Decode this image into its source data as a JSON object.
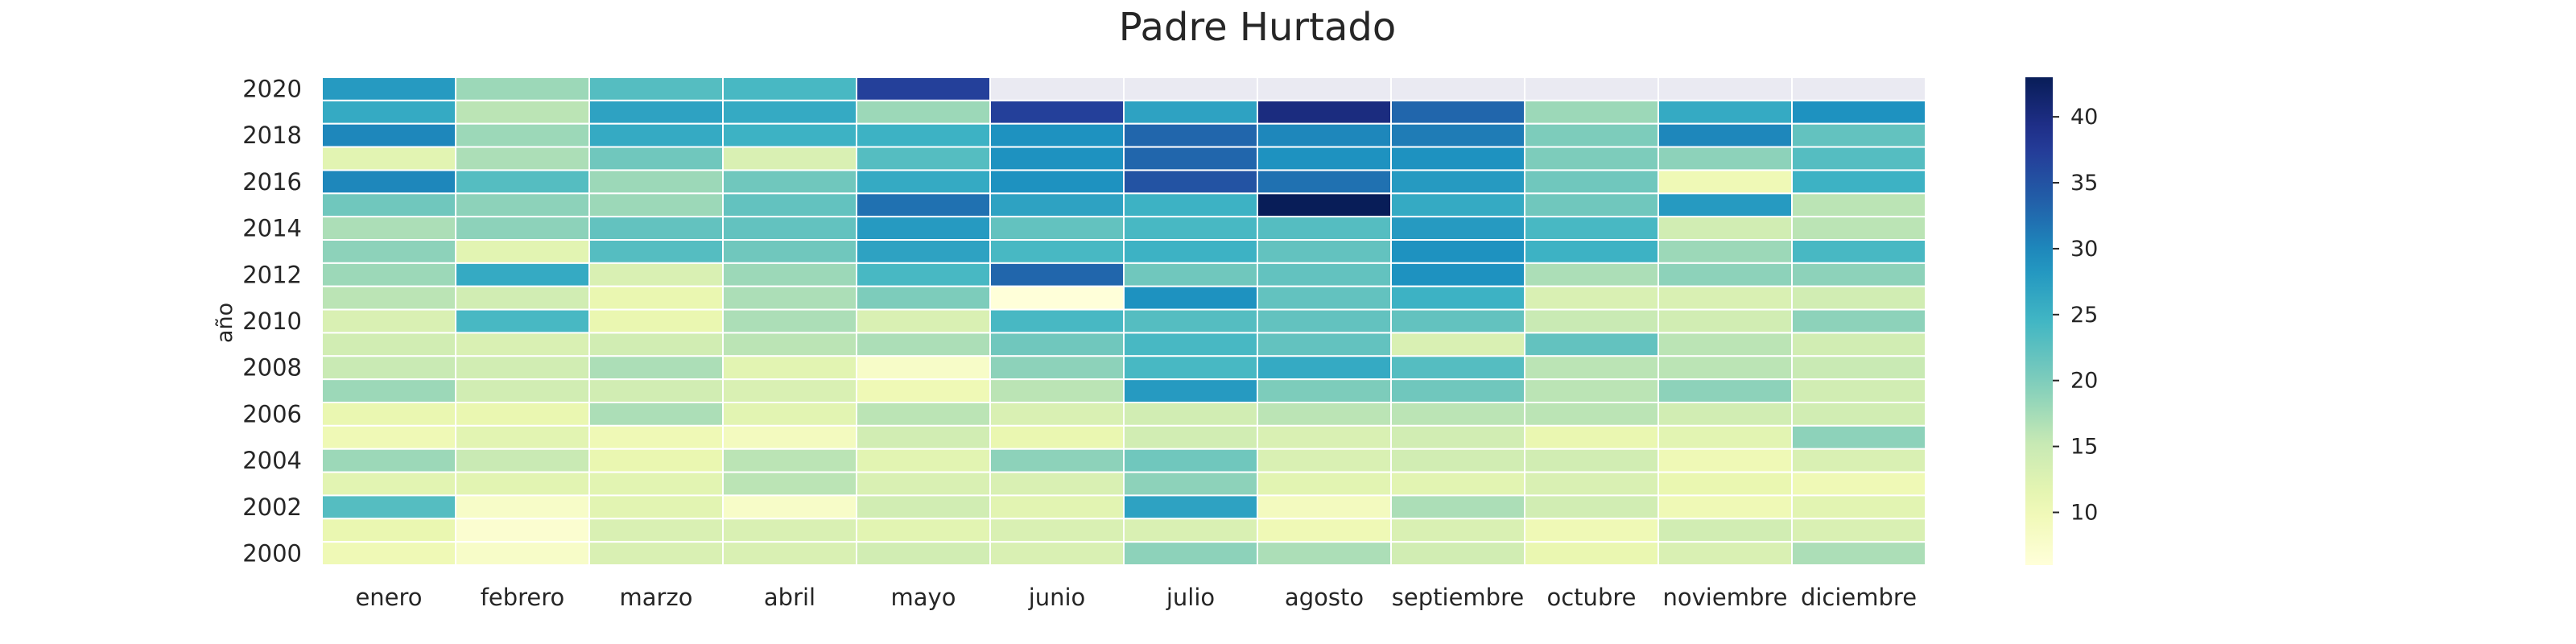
{
  "chart_data": {
    "type": "heatmap",
    "title": "Padre Hurtado",
    "xlabel": "",
    "ylabel": "año",
    "months": [
      "enero",
      "febrero",
      "marzo",
      "abril",
      "mayo",
      "junio",
      "julio",
      "agosto",
      "septiembre",
      "octubre",
      "noviembre",
      "diciembre"
    ],
    "years": [
      2020,
      2019,
      2018,
      2017,
      2016,
      2015,
      2014,
      2013,
      2012,
      2011,
      2010,
      2009,
      2008,
      2007,
      2006,
      2005,
      2004,
      2003,
      2002,
      2001,
      2000
    ],
    "year_tick_labels": [
      "2020",
      "2018",
      "2016",
      "2014",
      "2012",
      "2010",
      "2008",
      "2006",
      "2004",
      "2002",
      "2000"
    ],
    "values": [
      [
        28,
        18,
        23,
        24,
        37,
        null,
        null,
        null,
        null,
        null,
        null,
        null
      ],
      [
        26,
        16,
        27,
        26,
        18,
        37,
        27,
        40,
        33,
        18,
        26,
        29
      ],
      [
        30,
        18,
        26,
        25,
        25,
        29,
        33,
        30,
        31,
        20,
        30,
        22
      ],
      [
        12,
        17,
        21,
        13,
        23,
        29,
        33,
        29,
        29,
        20,
        19,
        23
      ],
      [
        30,
        23,
        18,
        21,
        26,
        29,
        35,
        32,
        28,
        21,
        10,
        25
      ],
      [
        21,
        19,
        18,
        22,
        32,
        27,
        25,
        43,
        26,
        21,
        28,
        16
      ],
      [
        17,
        19,
        22,
        22,
        28,
        22,
        24,
        23,
        28,
        24,
        14,
        16
      ],
      [
        19,
        12,
        23,
        21,
        27,
        24,
        25,
        22,
        29,
        25,
        18,
        24
      ],
      [
        18,
        26,
        13,
        18,
        24,
        33,
        21,
        22,
        29,
        17,
        19,
        19
      ],
      [
        16,
        14,
        11,
        17,
        20,
        6,
        29,
        22,
        25,
        13,
        13,
        14
      ],
      [
        13,
        24,
        11,
        17,
        13,
        24,
        23,
        22,
        22,
        15,
        14,
        19
      ],
      [
        14,
        13,
        14,
        16,
        17,
        21,
        24,
        22,
        13,
        22,
        16,
        14
      ],
      [
        15,
        14,
        17,
        12,
        8,
        19,
        24,
        26,
        23,
        16,
        16,
        15
      ],
      [
        18,
        14,
        14,
        13,
        10,
        16,
        28,
        20,
        21,
        16,
        19,
        14
      ],
      [
        11,
        11,
        17,
        12,
        16,
        13,
        14,
        16,
        16,
        16,
        14,
        14
      ],
      [
        10,
        12,
        10,
        9,
        14,
        11,
        14,
        13,
        14,
        11,
        12,
        19
      ],
      [
        18,
        15,
        11,
        16,
        12,
        19,
        21,
        13,
        14,
        14,
        10,
        13
      ],
      [
        12,
        12,
        12,
        16,
        13,
        13,
        19,
        12,
        12,
        13,
        11,
        10
      ],
      [
        23,
        8,
        12,
        8,
        14,
        12,
        27,
        9,
        17,
        14,
        10,
        12
      ],
      [
        11,
        7,
        13,
        13,
        12,
        13,
        13,
        10,
        13,
        10,
        14,
        13
      ],
      [
        10,
        8,
        13,
        13,
        14,
        13,
        19,
        17,
        14,
        11,
        13,
        17
      ]
    ],
    "colorbar": {
      "min": 6,
      "max": 43,
      "ticks": [
        10,
        15,
        20,
        25,
        30,
        35,
        40
      ],
      "colormap": "YlGnBu"
    },
    "missing_color": "#eaeaf2",
    "grid": false
  }
}
